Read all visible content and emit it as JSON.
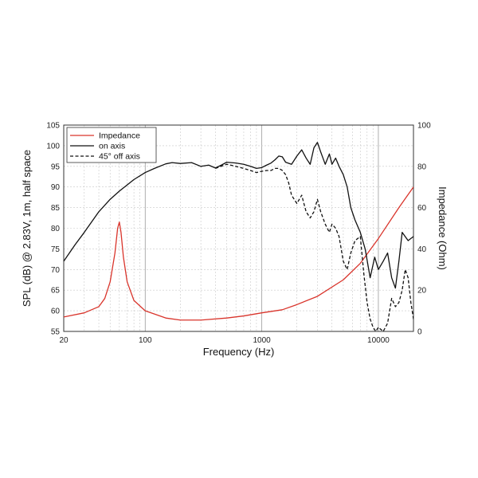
{
  "chart_data": {
    "type": "line",
    "title": "",
    "xlabel": "Frequency (Hz)",
    "ylabel": "SPL (dB) @ 2.83V, 1m, half space",
    "y2label": "Impedance (Ohm)",
    "x_scale": "log",
    "xlim": [
      20,
      20000
    ],
    "ylim": [
      55,
      105
    ],
    "y2lim": [
      0,
      100
    ],
    "grid": true,
    "legend_position": "top-left",
    "x_tick_labels": [
      "20",
      "100",
      "1000",
      "10000"
    ],
    "y_tick_labels": [
      "55",
      "60",
      "65",
      "70",
      "75",
      "80",
      "85",
      "90",
      "95",
      "100",
      "105"
    ],
    "y2_tick_labels": [
      "0",
      "20",
      "40",
      "60",
      "80",
      "100"
    ],
    "series": [
      {
        "name": "Impedance",
        "axis": "right",
        "color": "#d9342b",
        "style": "solid",
        "x": [
          20,
          30,
          40,
          45,
          50,
          55,
          58,
          60,
          62,
          65,
          70,
          80,
          100,
          150,
          200,
          300,
          500,
          700,
          1000,
          1500,
          2000,
          3000,
          5000,
          7000,
          10000,
          15000,
          20000
        ],
        "y": [
          7,
          9,
          12,
          16,
          24,
          38,
          50,
          53,
          48,
          36,
          24,
          15,
          10,
          6.5,
          5.5,
          5.5,
          6.5,
          7.5,
          9,
          10.5,
          13,
          17,
          25,
          33,
          45,
          60,
          70
        ]
      },
      {
        "name": "on axis",
        "axis": "left",
        "color": "#111111",
        "style": "solid",
        "x": [
          20,
          25,
          30,
          40,
          50,
          60,
          70,
          80,
          100,
          120,
          150,
          170,
          200,
          250,
          300,
          350,
          400,
          450,
          500,
          600,
          700,
          800,
          900,
          1000,
          1100,
          1200,
          1300,
          1400,
          1500,
          1600,
          1800,
          2000,
          2200,
          2400,
          2600,
          2800,
          3000,
          3200,
          3500,
          3800,
          4000,
          4300,
          4600,
          5000,
          5400,
          5800,
          6300,
          7000,
          7700,
          8500,
          9300,
          10000,
          11000,
          12000,
          13000,
          14000,
          15000,
          16000,
          18000,
          20000
        ],
        "y": [
          72,
          76,
          79,
          84,
          87,
          89,
          90.5,
          91.8,
          93.5,
          94.5,
          95.6,
          95.9,
          95.7,
          95.9,
          95,
          95.3,
          94.6,
          95.3,
          96,
          95.8,
          95.5,
          95,
          94.5,
          94.7,
          95.3,
          95.8,
          96.6,
          97.5,
          97.3,
          96,
          95.5,
          97.5,
          99,
          97,
          95.5,
          99.5,
          100.8,
          98.5,
          95.5,
          98,
          95.5,
          97,
          95,
          93,
          90,
          85,
          82,
          79,
          75,
          68,
          73,
          70,
          72,
          74,
          68,
          65.5,
          72,
          79,
          77,
          78
        ]
      },
      {
        "name": "45° off axis",
        "axis": "left",
        "color": "#111111",
        "style": "dashed",
        "x": [
          400,
          500,
          600,
          700,
          800,
          900,
          1000,
          1100,
          1200,
          1300,
          1400,
          1500,
          1600,
          1700,
          1800,
          2000,
          2200,
          2400,
          2600,
          2800,
          3000,
          3200,
          3500,
          3800,
          4000,
          4300,
          4600,
          5000,
          5400,
          5800,
          6300,
          7000,
          7500,
          8000,
          8500,
          9000,
          9500,
          10000,
          11000,
          12000,
          13000,
          14000,
          15000,
          16000,
          17000,
          18000,
          19000,
          20000
        ],
        "y": [
          94.5,
          95.5,
          95,
          94.5,
          94,
          93.5,
          93.8,
          94,
          94,
          94.5,
          94.5,
          94,
          93,
          91,
          88,
          86,
          88,
          84,
          82.5,
          84,
          87,
          84,
          81,
          79,
          81,
          80,
          78,
          72,
          70,
          74,
          77,
          78,
          69,
          62,
          58,
          56,
          55,
          56,
          55,
          57,
          63,
          61,
          62,
          65,
          70,
          68,
          62,
          58
        ]
      }
    ]
  }
}
